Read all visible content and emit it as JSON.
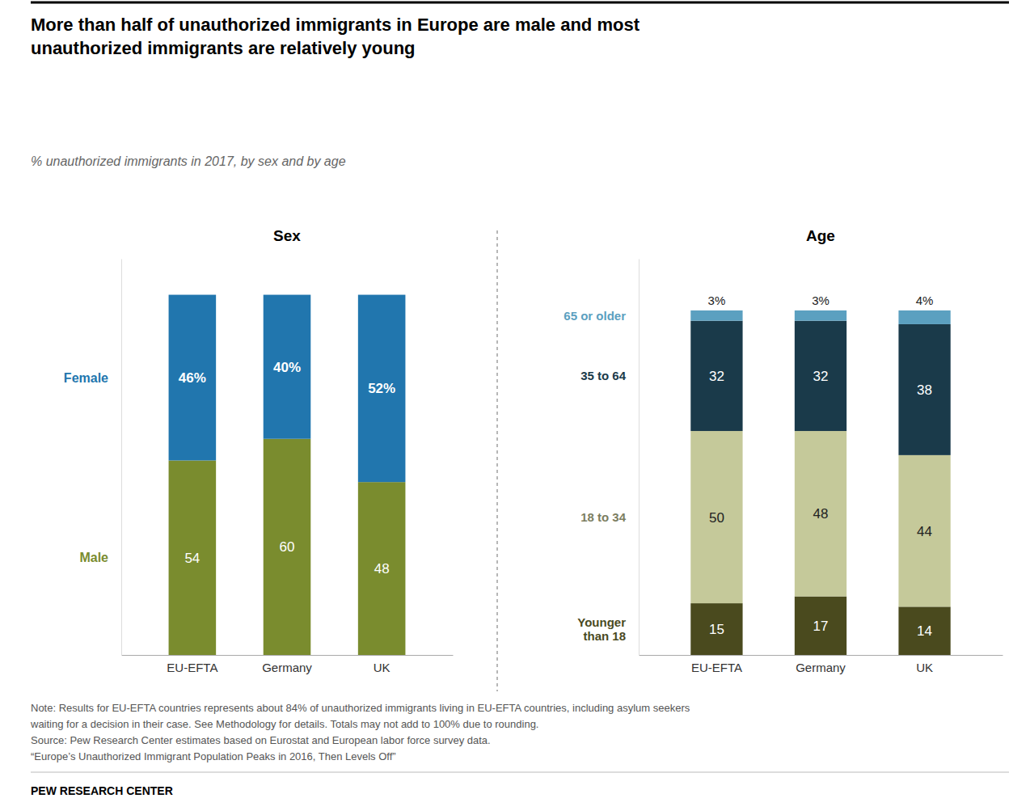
{
  "title": "More than half of unauthorized immigrants in Europe are male and most\nunauthorized immigrants are relatively young",
  "subtitle": "% unauthorized immigrants in 2017, by sex and by age",
  "notes": [
    "Note: Results for EU-EFTA countries represents about 84% of unauthorized immigrants living in EU-EFTA countries, including asylum seekers",
    "waiting for a decision in their case. See Methodology for details. Totals may not add to 100% due to rounding.",
    "Source: Pew Research Center estimates based on Eurostat and European labor force survey data.",
    "“Europe’s Unauthorized Immigrant Population Peaks in 2016, Then Levels Off”"
  ],
  "source": "PEW RESEARCH CENTER",
  "chart_data": [
    {
      "type": "bar",
      "title": "Sex",
      "stacked": true,
      "data_labels": true,
      "tick_labels": "x",
      "legend": "left",
      "categories": [
        "EU-EFTA",
        "Germany",
        "UK"
      ],
      "ylim": [
        0,
        110
      ],
      "series": [
        {
          "name": "Male",
          "color": "#7a8c2e",
          "values": [
            54,
            60,
            48
          ]
        },
        {
          "name": "Female",
          "color": "#2176ae",
          "values": [
            46,
            40,
            52
          ],
          "value_labels": [
            "46%",
            "40%",
            "52%"
          ]
        }
      ]
    },
    {
      "type": "bar",
      "title": "Age",
      "stacked": true,
      "data_labels": true,
      "tick_labels": "x",
      "legend": "left",
      "categories": [
        "EU-EFTA",
        "Germany",
        "UK"
      ],
      "ylim": [
        0,
        115
      ],
      "series": [
        {
          "name": "Younger\nthan 18",
          "color": "#4a4a1e",
          "values": [
            15,
            17,
            14
          ]
        },
        {
          "name": "18 to 34",
          "color": "#c5c99a",
          "values": [
            50,
            48,
            44
          ]
        },
        {
          "name": "35 to 64",
          "color": "#1a3a4a",
          "values": [
            32,
            32,
            38
          ]
        },
        {
          "name": "65 or older",
          "color": "#5ba0c0",
          "values": [
            3,
            3,
            4
          ],
          "value_labels": [
            "3%",
            "3%",
            "4%"
          ]
        }
      ]
    }
  ]
}
